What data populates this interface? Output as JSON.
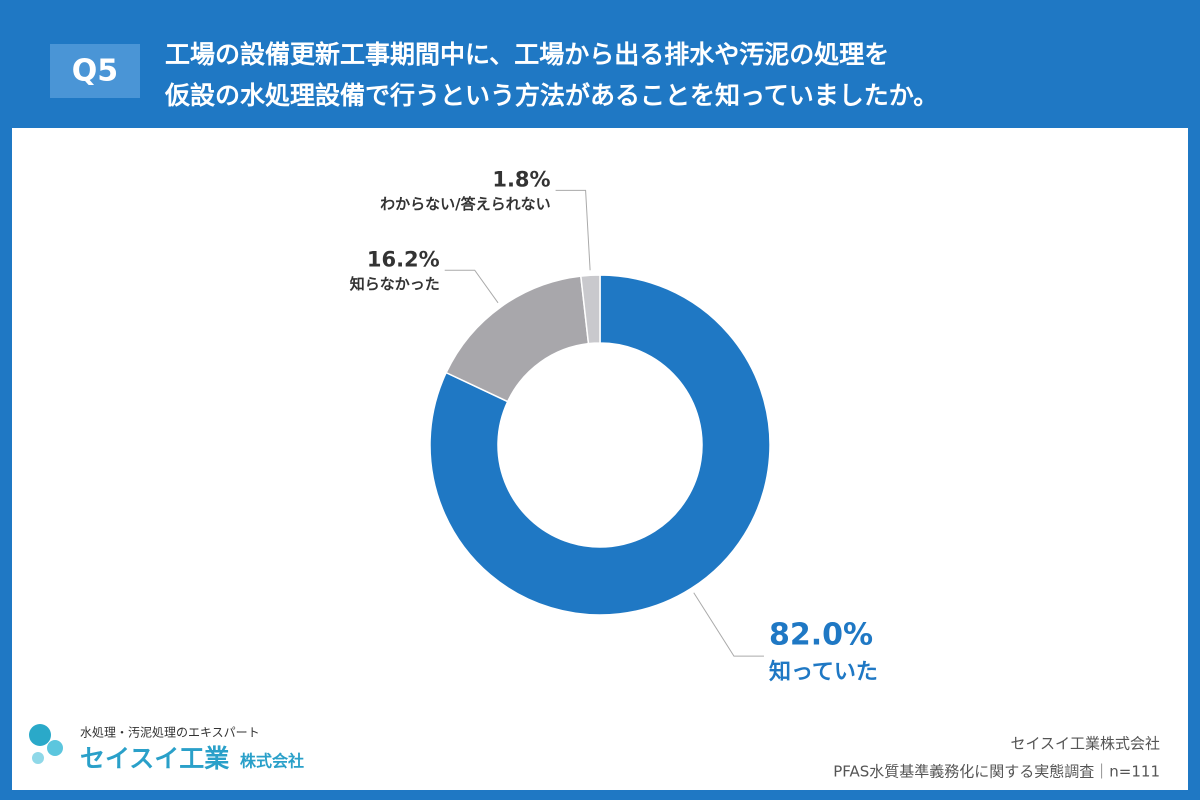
{
  "header": {
    "label": "Q5",
    "title_lines": [
      "工場の設備更新工事期間中に、工場から出る排水や汚泥の処理を",
      "仮設の水処理設備で行うという方法があることを知っていましたか。"
    ]
  },
  "chart_data": {
    "type": "pie",
    "donut": true,
    "categories": [
      "知っていた",
      "知らなかった",
      "わからない/答えられない"
    ],
    "values": [
      82.0,
      16.2,
      1.8
    ],
    "value_labels": [
      "82.0%",
      "16.2%",
      "1.8%"
    ],
    "colors": [
      "#1f78c4",
      "#a8a7ab",
      "#c9c9cd"
    ]
  },
  "logo": {
    "tagline": "水処理・汚泥処理のエキスパート",
    "name": "セイスイ工業",
    "suffix": "株式会社"
  },
  "footer": {
    "company": "セイスイ工業株式会社",
    "survey": "PFAS水質基準義務化に関する実態調査｜n=111"
  }
}
